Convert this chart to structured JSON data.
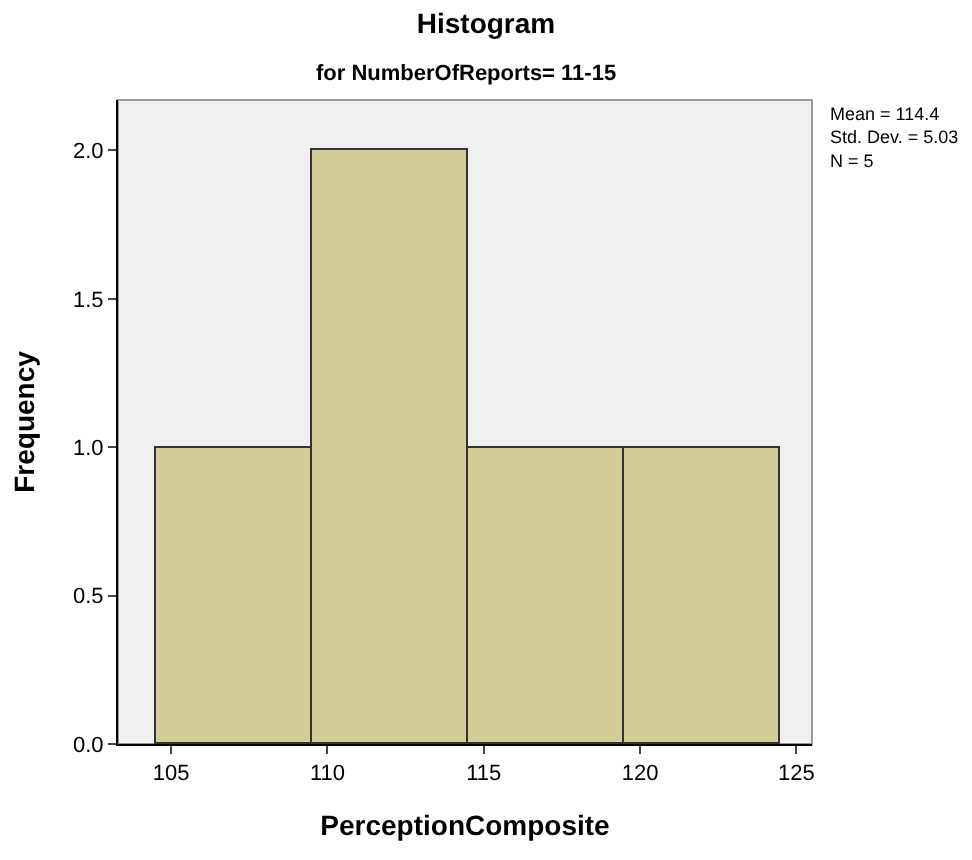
{
  "chart_data": {
    "type": "histogram",
    "title": "Histogram",
    "subtitle": "for NumberOfReports= 11-15",
    "xlabel": "PerceptionComposite",
    "ylabel": "Frequency",
    "bins": [
      104.5,
      109.5,
      114.5,
      119.5,
      124.5
    ],
    "values": [
      1,
      2,
      1,
      1
    ],
    "color": "#d3ce97",
    "xlim": [
      103.3,
      125.5
    ],
    "xticks": [
      105,
      110,
      115,
      120,
      125
    ],
    "ylim": [
      0,
      2.17
    ],
    "yticks": [
      {
        "value": 0,
        "label": "0.0"
      },
      {
        "value": 0.5,
        "label": "0.5"
      },
      {
        "value": 1,
        "label": "1.0"
      },
      {
        "value": 1.5,
        "label": "1.5"
      },
      {
        "value": 2,
        "label": "2.0"
      }
    ],
    "grid": false,
    "annotations": [
      "Mean = 114.4\nStd. Dev. = 5.03\nN = 5"
    ]
  }
}
